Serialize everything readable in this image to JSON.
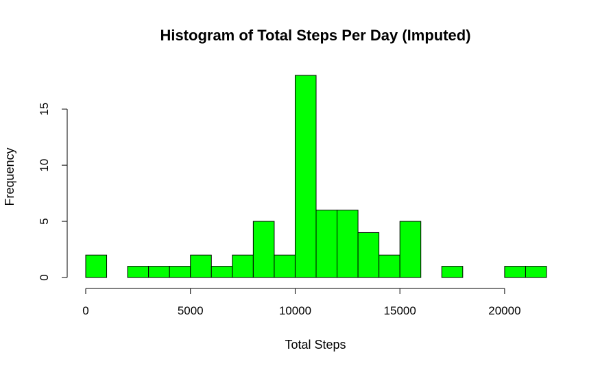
{
  "chart_data": {
    "type": "bar",
    "title": "Histogram of Total Steps Per Day (Imputed)",
    "xlabel": "Total Steps",
    "ylabel": "Frequency",
    "bar_color": "#00ff00",
    "bins": [
      [
        0,
        1000
      ],
      [
        1000,
        2000
      ],
      [
        2000,
        3000
      ],
      [
        3000,
        4000
      ],
      [
        4000,
        5000
      ],
      [
        5000,
        6000
      ],
      [
        6000,
        7000
      ],
      [
        7000,
        8000
      ],
      [
        8000,
        9000
      ],
      [
        9000,
        10000
      ],
      [
        10000,
        11000
      ],
      [
        11000,
        12000
      ],
      [
        12000,
        13000
      ],
      [
        13000,
        14000
      ],
      [
        14000,
        15000
      ],
      [
        15000,
        16000
      ],
      [
        16000,
        17000
      ],
      [
        17000,
        18000
      ],
      [
        18000,
        19000
      ],
      [
        19000,
        20000
      ],
      [
        20000,
        21000
      ],
      [
        21000,
        22000
      ]
    ],
    "values": [
      2,
      0,
      1,
      1,
      1,
      2,
      1,
      2,
      5,
      2,
      18,
      6,
      6,
      4,
      2,
      5,
      0,
      1,
      0,
      0,
      1,
      1
    ],
    "xlim": [
      0,
      22000
    ],
    "ylim": [
      0,
      18
    ],
    "x_ticks": [
      0,
      5000,
      10000,
      15000,
      20000
    ],
    "x_tick_labels": [
      "0",
      "5000",
      "10000",
      "15000",
      "20000"
    ],
    "y_ticks": [
      0,
      5,
      10,
      15
    ],
    "y_tick_labels": [
      "0",
      "5",
      "10",
      "15"
    ],
    "grid": false
  }
}
